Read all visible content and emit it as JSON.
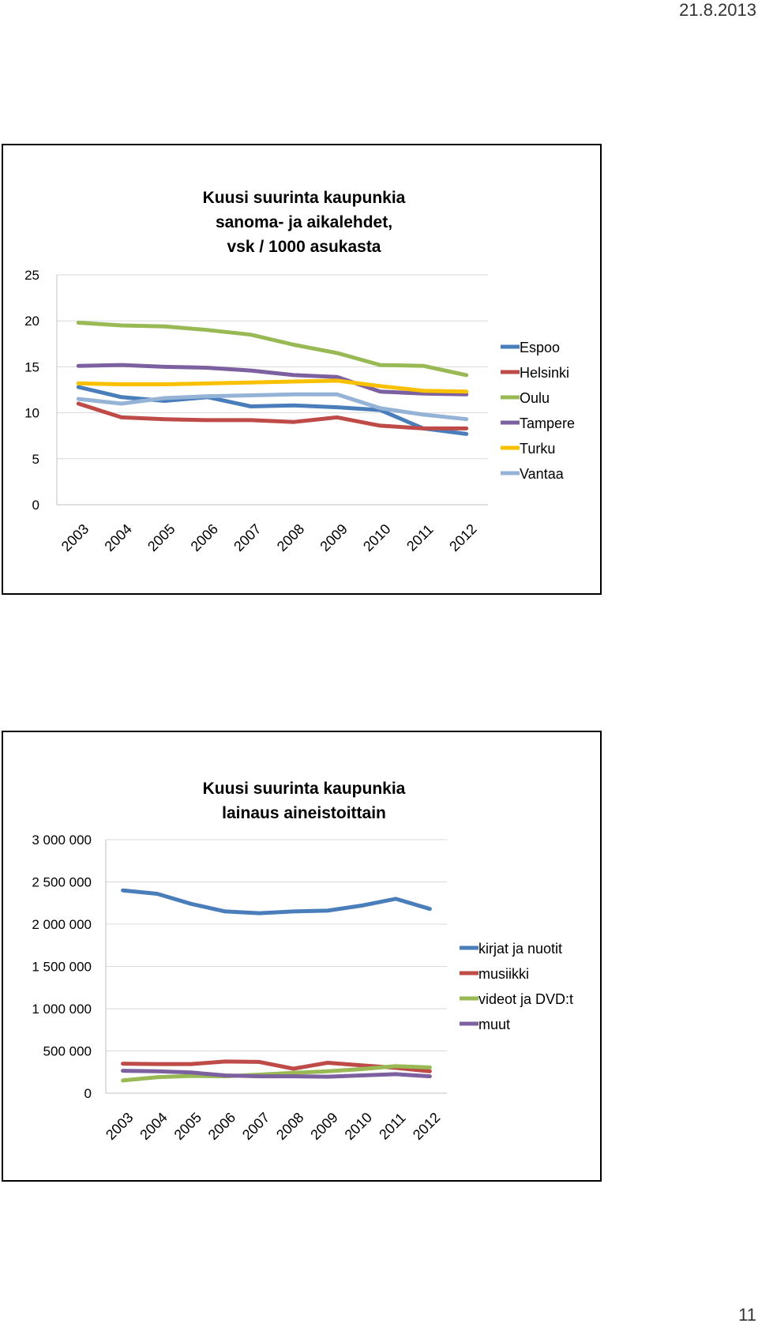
{
  "page": {
    "date": "21.8.2013",
    "number": "11"
  },
  "chart_data": [
    {
      "type": "line",
      "title": [
        "Kuusi suurinta kaupunkia",
        "sanoma- ja aikalehdet,",
        "vsk / 1000 asukasta"
      ],
      "categories": [
        "2003",
        "2004",
        "2005",
        "2006",
        "2007",
        "2008",
        "2009",
        "2010",
        "2011",
        "2012"
      ],
      "ylim": [
        0,
        25
      ],
      "yticks": [
        0,
        5,
        10,
        15,
        20,
        25
      ],
      "ytick_labels": [
        "0",
        "5",
        "10",
        "15",
        "20",
        "25"
      ],
      "grid": true,
      "legend": "right",
      "series": [
        {
          "name": "Espoo",
          "color": "#4a7ebb",
          "values": [
            12.8,
            11.7,
            11.3,
            11.7,
            10.7,
            10.8,
            10.6,
            10.3,
            8.3,
            7.7
          ]
        },
        {
          "name": "Helsinki",
          "color": "#be4b48",
          "values": [
            11.0,
            9.5,
            9.3,
            9.2,
            9.2,
            9.0,
            9.5,
            8.6,
            8.3,
            8.3
          ]
        },
        {
          "name": "Oulu",
          "color": "#98b954",
          "values": [
            19.8,
            19.5,
            19.4,
            19.0,
            18.5,
            17.4,
            16.5,
            15.2,
            15.1,
            14.1
          ]
        },
        {
          "name": "Tampere",
          "color": "#7d60a0",
          "values": [
            15.1,
            15.2,
            15.0,
            14.9,
            14.6,
            14.1,
            13.9,
            12.3,
            12.1,
            12.0
          ]
        },
        {
          "name": "Turku",
          "color": "#f9c000",
          "values": [
            13.2,
            13.1,
            13.1,
            13.2,
            13.3,
            13.4,
            13.5,
            12.9,
            12.4,
            12.3
          ]
        },
        {
          "name": "Vantaa",
          "color": "#95b3d7",
          "values": [
            11.5,
            11.0,
            11.6,
            11.8,
            11.9,
            12.0,
            12.0,
            10.5,
            9.8,
            9.3
          ]
        }
      ]
    },
    {
      "type": "line",
      "title": [
        "Kuusi suurinta kaupunkia",
        "lainaus aineistoittain"
      ],
      "categories": [
        "2003",
        "2004",
        "2005",
        "2006",
        "2007",
        "2008",
        "2009",
        "2010",
        "2011",
        "2012"
      ],
      "ylim": [
        0,
        3000000
      ],
      "yticks": [
        0,
        500000,
        1000000,
        1500000,
        2000000,
        2500000,
        3000000
      ],
      "ytick_labels": [
        "0",
        "500 000",
        "1 000 000",
        "1 500 000",
        "2 000 000",
        "2 500 000",
        "3 000 000"
      ],
      "grid": true,
      "legend": "right",
      "series": [
        {
          "name": "kirjat ja nuotit",
          "color": "#4a7ebb",
          "values": [
            2400000,
            2360000,
            2240000,
            2150000,
            2130000,
            2150000,
            2160000,
            2220000,
            2300000,
            2180000
          ]
        },
        {
          "name": "musiikki",
          "color": "#be4b48",
          "values": [
            350000,
            345000,
            345000,
            375000,
            370000,
            290000,
            360000,
            330000,
            300000,
            260000
          ]
        },
        {
          "name": "videot ja DVD:t",
          "color": "#98b954",
          "values": [
            150000,
            190000,
            205000,
            200000,
            220000,
            240000,
            260000,
            285000,
            320000,
            305000
          ]
        },
        {
          "name": "muut",
          "color": "#7d60a0",
          "values": [
            265000,
            260000,
            245000,
            210000,
            200000,
            200000,
            195000,
            210000,
            225000,
            200000
          ]
        }
      ]
    }
  ]
}
